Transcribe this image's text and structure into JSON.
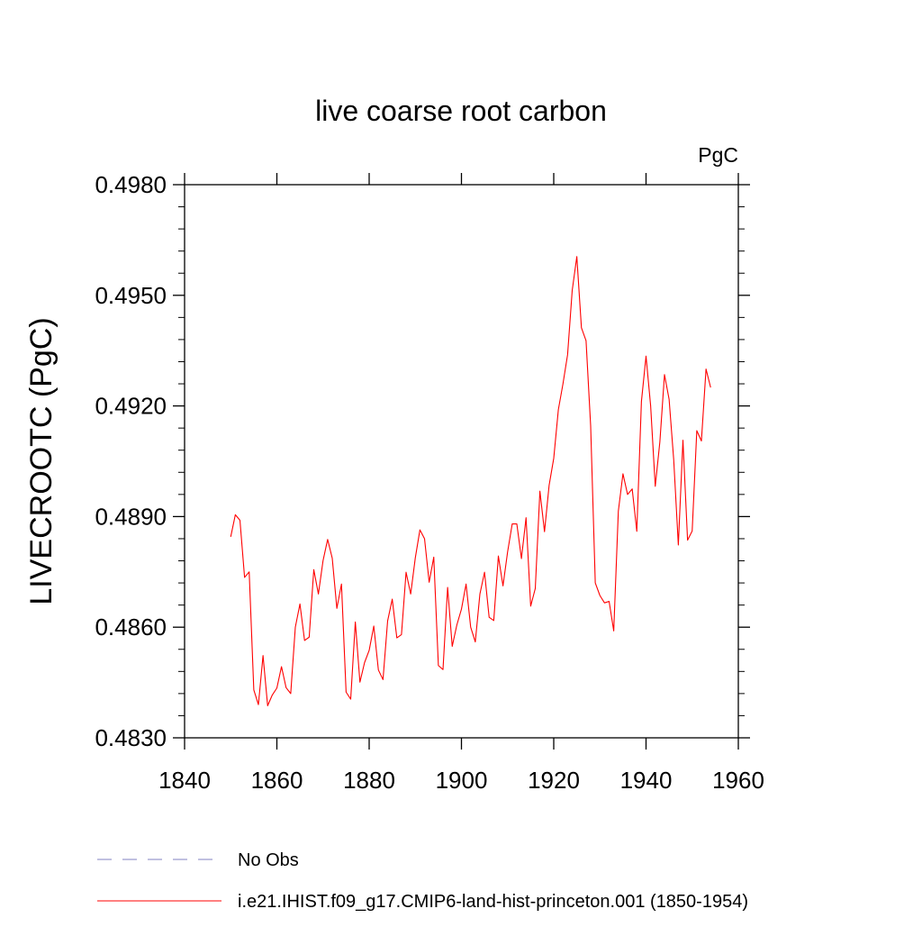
{
  "chart_data": {
    "type": "line",
    "title": "live coarse root carbon",
    "units_label": "PgC",
    "xlabel": "",
    "ylabel": "LIVECROOTC  (PgC)",
    "xlim": [
      1840,
      1960
    ],
    "ylim": [
      0.483,
      0.498
    ],
    "x_ticks": [
      1840,
      1860,
      1880,
      1900,
      1920,
      1940,
      1960
    ],
    "x_tick_labels": [
      "1840",
      "1860",
      "1880",
      "1900",
      "1920",
      "1940",
      "1960"
    ],
    "y_ticks": [
      0.483,
      0.486,
      0.489,
      0.492,
      0.495,
      0.498
    ],
    "y_tick_labels": [
      "0.4830",
      "0.4860",
      "0.4890",
      "0.4920",
      "0.4950",
      "0.4980"
    ],
    "grid": false,
    "legend_position": "bottom",
    "legend": [
      {
        "label": "No Obs",
        "color": "#8080c0",
        "style": "dashed"
      },
      {
        "label": "i.e21.IHIST.f09_g17.CMIP6-land-hist-princeton.001 (1850-1954)",
        "color": "#ff0000",
        "style": "solid"
      }
    ],
    "series": [
      {
        "name": "i.e21.IHIST.f09_g17.CMIP6-land-hist-princeton.001 (1850-1954)",
        "color": "#ff0000",
        "x": [
          1850,
          1851,
          1852,
          1853,
          1854,
          1855,
          1856,
          1857,
          1858,
          1859,
          1860,
          1861,
          1862,
          1863,
          1864,
          1865,
          1866,
          1867,
          1868,
          1869,
          1870,
          1871,
          1872,
          1873,
          1874,
          1875,
          1876,
          1877,
          1878,
          1879,
          1880,
          1881,
          1882,
          1883,
          1884,
          1885,
          1886,
          1887,
          1888,
          1889,
          1890,
          1891,
          1892,
          1893,
          1894,
          1895,
          1896,
          1897,
          1898,
          1899,
          1900,
          1901,
          1902,
          1903,
          1904,
          1905,
          1906,
          1907,
          1908,
          1909,
          1910,
          1911,
          1912,
          1913,
          1914,
          1915,
          1916,
          1917,
          1918,
          1919,
          1920,
          1921,
          1922,
          1923,
          1924,
          1925,
          1926,
          1927,
          1928,
          1929,
          1930,
          1931,
          1932,
          1933,
          1934,
          1935,
          1936,
          1937,
          1938,
          1939,
          1940,
          1941,
          1942,
          1943,
          1944,
          1945,
          1946,
          1947,
          1948,
          1949,
          1950,
          1951,
          1952,
          1953,
          1954
        ],
        "y": [
          0.48845,
          0.48905,
          0.4889,
          0.48735,
          0.4875,
          0.4843,
          0.4839,
          0.48523,
          0.48387,
          0.48416,
          0.48435,
          0.48493,
          0.48436,
          0.4842,
          0.486,
          0.48663,
          0.48564,
          0.48573,
          0.48756,
          0.4869,
          0.4878,
          0.48838,
          0.48787,
          0.48651,
          0.48717,
          0.48424,
          0.48405,
          0.48614,
          0.48451,
          0.48504,
          0.48537,
          0.48603,
          0.48484,
          0.48458,
          0.48617,
          0.48676,
          0.48571,
          0.4858,
          0.48749,
          0.4869,
          0.48788,
          0.48864,
          0.4884,
          0.48722,
          0.4879,
          0.48496,
          0.48485,
          0.48708,
          0.48548,
          0.48606,
          0.48649,
          0.48717,
          0.486,
          0.4856,
          0.4869,
          0.48749,
          0.48627,
          0.48618,
          0.48793,
          0.48712,
          0.48804,
          0.4888,
          0.4888,
          0.48786,
          0.48897,
          0.48657,
          0.48705,
          0.48969,
          0.48859,
          0.48985,
          0.49058,
          0.4919,
          0.4926,
          0.49339,
          0.49513,
          0.49605,
          0.49412,
          0.49377,
          0.49146,
          0.4872,
          0.48686,
          0.48666,
          0.4867,
          0.4859,
          0.48915,
          0.49016,
          0.4896,
          0.48975,
          0.4886,
          0.49212,
          0.49335,
          0.492,
          0.48982,
          0.49103,
          0.49285,
          0.49218,
          0.49054,
          0.48823,
          0.49107,
          0.48836,
          0.48861,
          0.49133,
          0.49105,
          0.493,
          0.4925
        ]
      }
    ]
  }
}
